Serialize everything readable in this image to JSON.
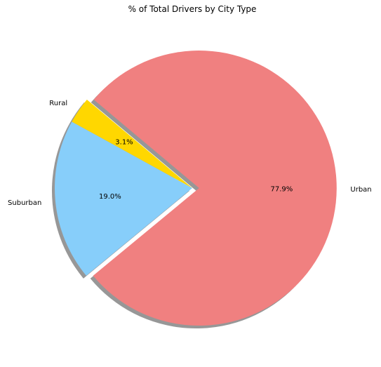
{
  "chart_data": {
    "type": "pie",
    "title": "% of Total Drivers by City Type",
    "categories": [
      "Rural",
      "Suburban",
      "Urban"
    ],
    "values": [
      3.1,
      19.0,
      77.9
    ],
    "value_labels": [
      "3.1%",
      "19.0%",
      "77.9%"
    ],
    "colors": [
      "#FFD700",
      "#87CEFA",
      "#F08080"
    ],
    "explode": [
      0,
      0,
      0.05
    ],
    "start_angle_deg": 140,
    "shadow": true
  }
}
